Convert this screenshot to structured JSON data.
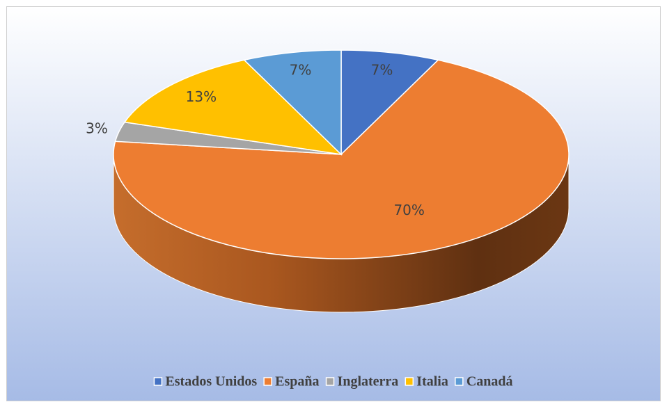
{
  "chart_data": {
    "type": "pie3d",
    "categories": [
      "Estados Unidos",
      "España",
      "Inglaterra",
      "Italia",
      "Canadá"
    ],
    "values": [
      7,
      70,
      3,
      13,
      7
    ],
    "value_labels": [
      "7%",
      "70%",
      "3%",
      "13%",
      "7%"
    ],
    "colors": [
      "#4472c4",
      "#ed7d31",
      "#a5a5a5",
      "#ffc000",
      "#5b9bd5"
    ],
    "legend": "bottom"
  }
}
